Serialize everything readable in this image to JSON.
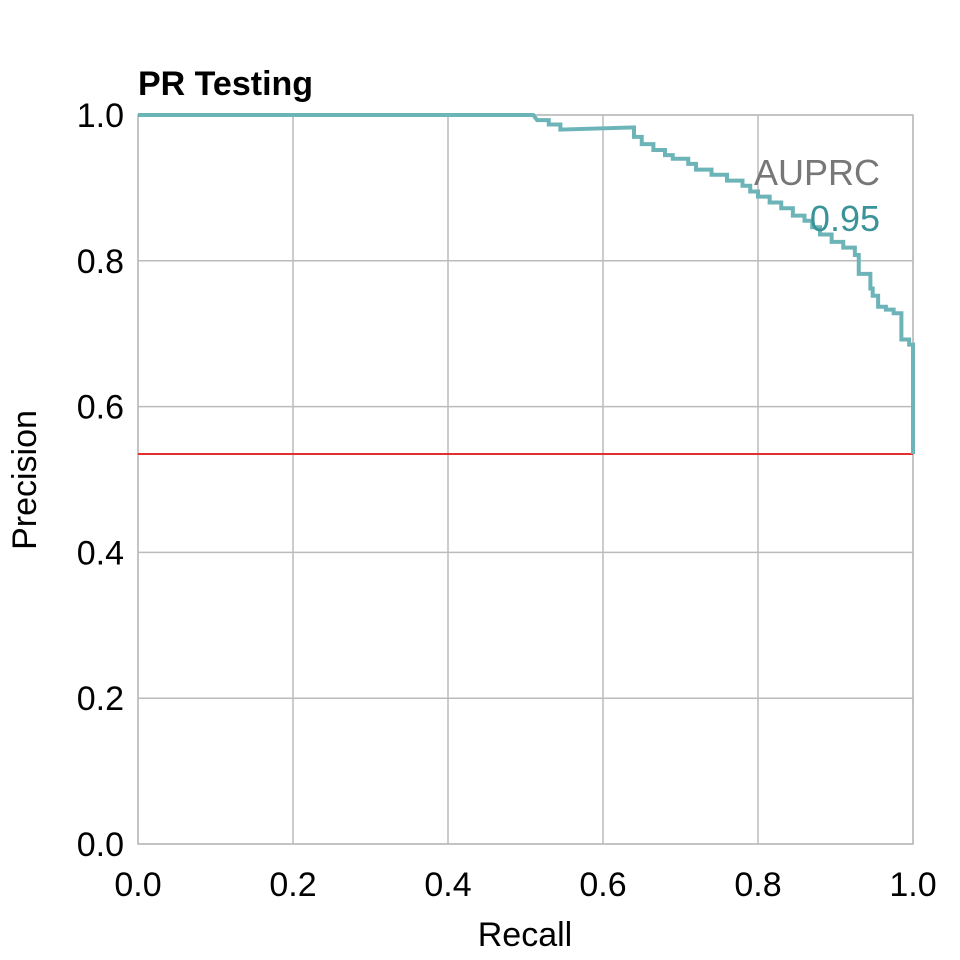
{
  "chart_data": {
    "type": "line",
    "title": "PR Testing",
    "xlabel": "Recall",
    "ylabel": "Precision",
    "xlim": [
      0,
      1
    ],
    "ylim": [
      0,
      1
    ],
    "xticks": [
      "0.0",
      "0.2",
      "0.4",
      "0.6",
      "0.8",
      "1.0"
    ],
    "yticks": [
      "0.0",
      "0.2",
      "0.4",
      "0.6",
      "0.8",
      "1.0"
    ],
    "grid": true,
    "annotation": {
      "label": "AUPRC",
      "value": "0.95"
    },
    "baseline": 0.535,
    "series": [
      {
        "x": [
          0.0,
          0.51,
          0.515,
          0.53,
          0.53,
          0.545,
          0.545,
          0.64,
          0.64,
          0.65,
          0.65,
          0.665,
          0.665,
          0.68,
          0.68,
          0.69,
          0.69,
          0.71,
          0.71,
          0.72,
          0.72,
          0.74,
          0.74,
          0.76,
          0.76,
          0.78,
          0.78,
          0.79,
          0.79,
          0.8,
          0.8,
          0.815,
          0.815,
          0.83,
          0.83,
          0.845,
          0.845,
          0.86,
          0.86,
          0.87,
          0.87,
          0.88,
          0.88,
          0.895,
          0.895,
          0.91,
          0.91,
          0.925,
          0.925,
          0.93,
          0.93,
          0.945,
          0.945,
          0.948,
          0.948,
          0.955,
          0.955,
          0.965,
          0.965,
          0.975,
          0.975,
          0.985,
          0.985,
          0.995,
          0.995,
          1.0,
          1.0
        ],
        "y": [
          1.0,
          1.0,
          0.993,
          0.993,
          0.987,
          0.987,
          0.98,
          0.983,
          0.97,
          0.97,
          0.96,
          0.96,
          0.952,
          0.952,
          0.945,
          0.945,
          0.94,
          0.94,
          0.933,
          0.933,
          0.925,
          0.925,
          0.918,
          0.918,
          0.91,
          0.91,
          0.903,
          0.903,
          0.895,
          0.895,
          0.888,
          0.888,
          0.88,
          0.88,
          0.872,
          0.872,
          0.862,
          0.862,
          0.855,
          0.855,
          0.846,
          0.846,
          0.836,
          0.836,
          0.826,
          0.826,
          0.818,
          0.818,
          0.808,
          0.808,
          0.782,
          0.782,
          0.762,
          0.762,
          0.752,
          0.752,
          0.737,
          0.737,
          0.733,
          0.733,
          0.728,
          0.728,
          0.692,
          0.692,
          0.685,
          0.685,
          0.535
        ]
      }
    ],
    "colors": {
      "curve": "#6cb4b8",
      "baseline": "#e03030",
      "grid": "#bbbbbb",
      "annotation_label": "#777777",
      "annotation_value": "#3a9399"
    }
  }
}
